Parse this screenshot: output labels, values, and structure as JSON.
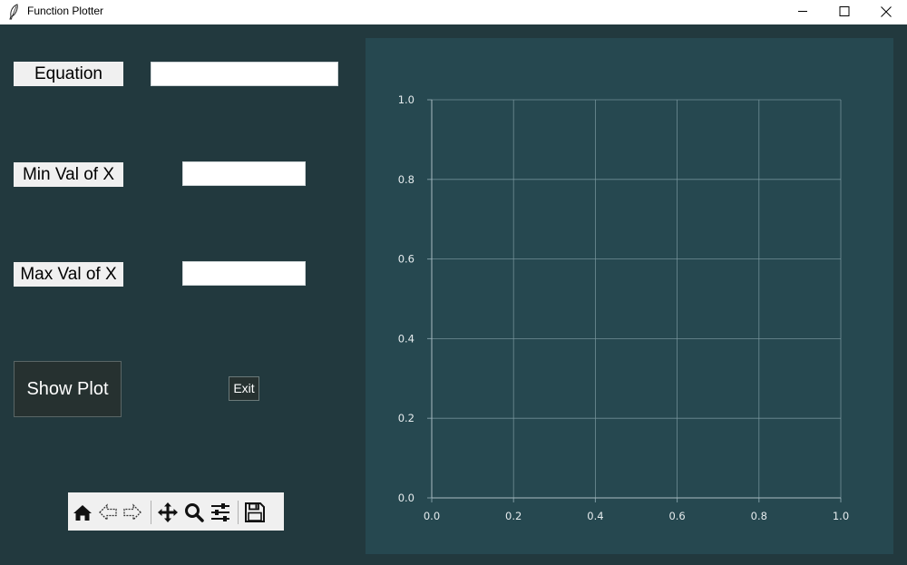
{
  "window": {
    "title": "Function Plotter"
  },
  "form": {
    "equation_label": "Equation",
    "equation_value": "",
    "min_label": "Min Val of X",
    "min_value": "",
    "max_label": "Max Val of X",
    "max_value": "",
    "show_plot_label": "Show Plot",
    "exit_label": "Exit"
  },
  "toolbar": {
    "icons": [
      "home-icon",
      "back-arrow-icon",
      "forward-arrow-icon",
      "pan-icon",
      "zoom-icon",
      "configure-subplots-icon",
      "save-icon"
    ]
  },
  "colors": {
    "window_bg": "#22393e",
    "plot_bg": "#264850",
    "grid": "#7e9aa2",
    "tick_text": "#e6ecee"
  },
  "chart_data": {
    "type": "line",
    "title": "",
    "xlabel": "",
    "ylabel": "",
    "series": [],
    "xlim": [
      0.0,
      1.0
    ],
    "ylim": [
      0.0,
      1.0
    ],
    "xticks": [
      "0.0",
      "0.2",
      "0.4",
      "0.6",
      "0.8",
      "1.0"
    ],
    "yticks": [
      "0.0",
      "0.2",
      "0.4",
      "0.6",
      "0.8",
      "1.0"
    ],
    "grid": true,
    "legend": "none"
  }
}
